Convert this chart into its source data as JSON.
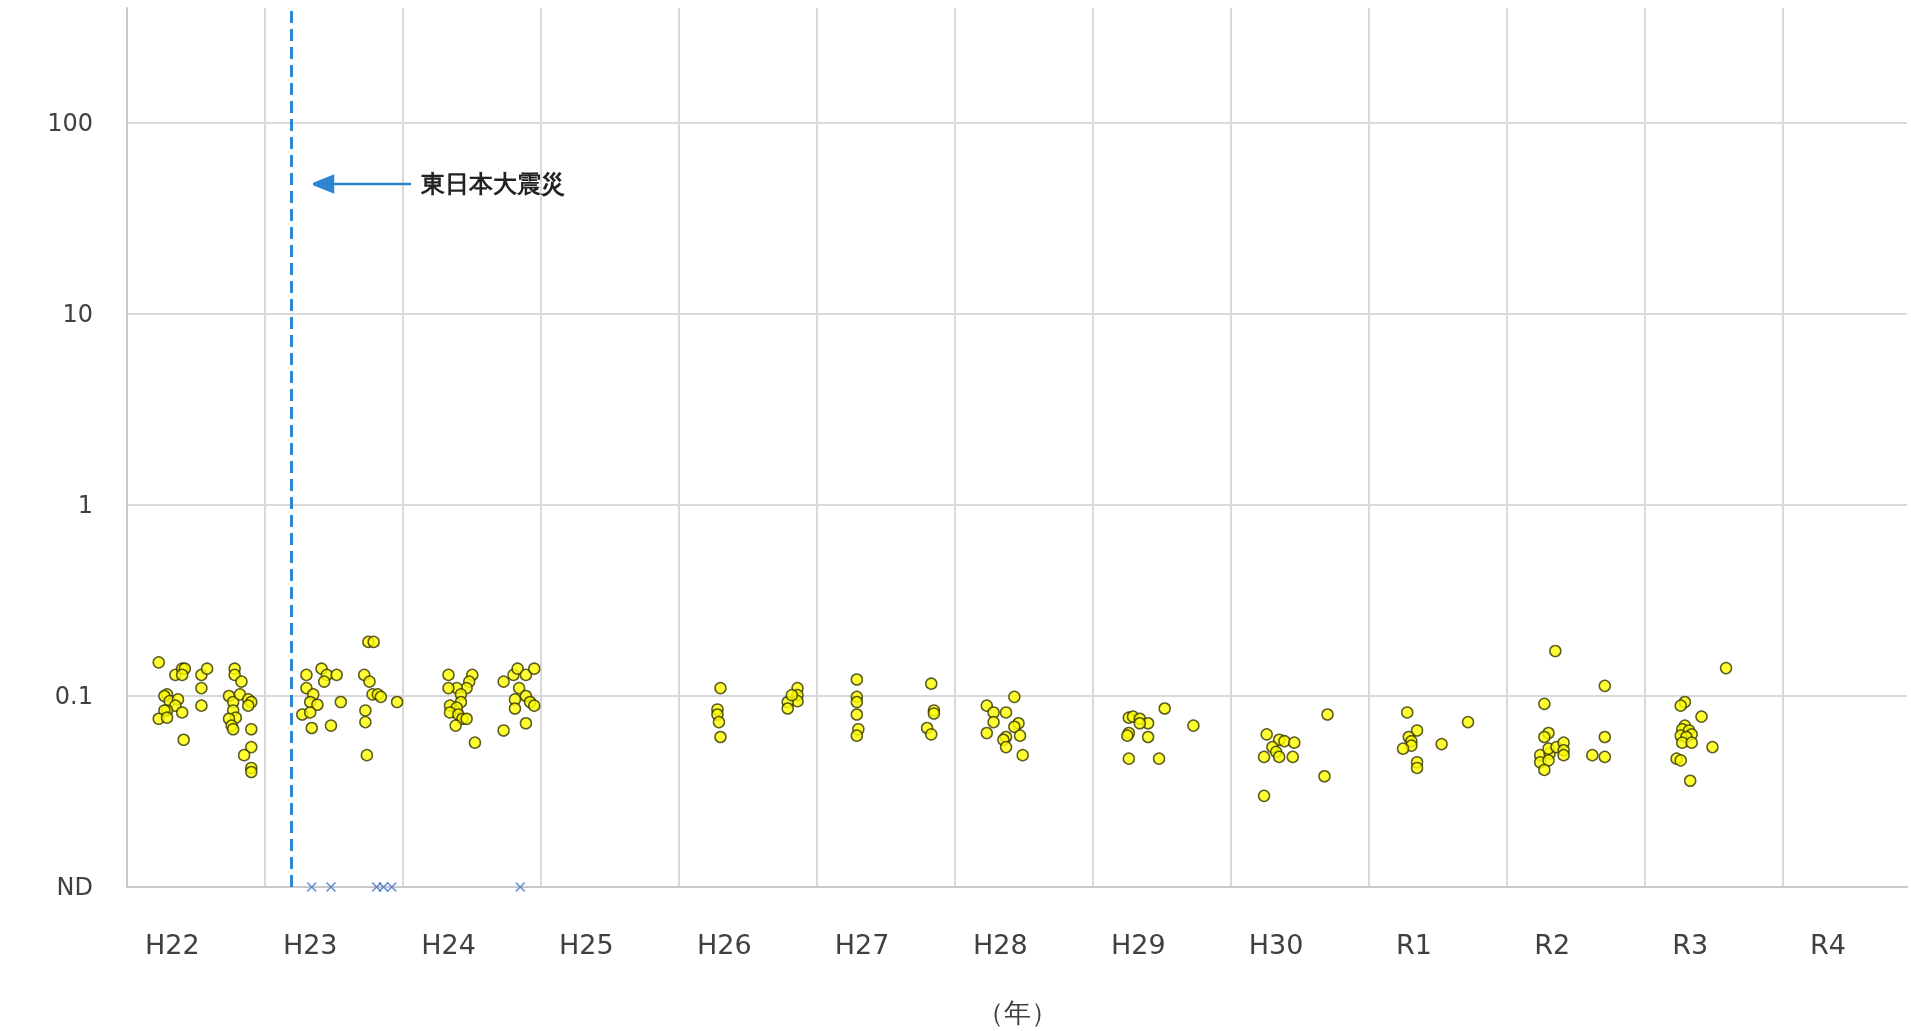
{
  "chart_data": {
    "type": "scatter",
    "xlabel": "（年）",
    "log": "y",
    "grid": true,
    "xlim": [
      "2010-01-01",
      "2022-11-26"
    ],
    "ylim": [
      0.01,
      400
    ],
    "xticks": [
      {
        "value": "2010-01-01",
        "label": null
      },
      {
        "value": "2011-01-01",
        "label": null
      },
      {
        "value": "2012-01-01",
        "label": null
      },
      {
        "value": "2013-01-01",
        "label": null
      },
      {
        "value": "2014-01-01",
        "label": null
      },
      {
        "value": "2015-01-01",
        "label": null
      },
      {
        "value": "2016-01-01",
        "label": null
      },
      {
        "value": "2017-01-01",
        "label": null
      },
      {
        "value": "2018-01-01",
        "label": null
      },
      {
        "value": "2019-01-01",
        "label": null
      },
      {
        "value": "2020-01-01",
        "label": null
      },
      {
        "value": "2021-01-01",
        "label": null
      },
      {
        "value": "2022-01-01",
        "label": null
      },
      {
        "value": "2010-05-01",
        "label": "H22"
      },
      {
        "value": "2011-05-01",
        "label": "H23"
      },
      {
        "value": "2012-05-01",
        "label": "H24"
      },
      {
        "value": "2013-05-01",
        "label": "H25"
      },
      {
        "value": "2014-05-01",
        "label": "H26"
      },
      {
        "value": "2015-05-01",
        "label": "H27"
      },
      {
        "value": "2016-05-01",
        "label": "H28"
      },
      {
        "value": "2017-05-01",
        "label": "H29"
      },
      {
        "value": "2018-05-01",
        "label": "H30"
      },
      {
        "value": "2019-05-01",
        "label": "R1"
      },
      {
        "value": "2020-05-01",
        "label": "R2"
      },
      {
        "value": "2021-05-01",
        "label": "R3"
      },
      {
        "value": "2022-05-01",
        "label": "R4"
      }
    ],
    "yticks": [
      {
        "value": 0.01,
        "label": "ND"
      },
      0.1,
      1,
      10,
      100
    ],
    "ref_lines": [
      {
        "axis": "x",
        "value": "2011-03-11",
        "color": "#2e86d0",
        "line_style": "dashed"
      }
    ],
    "annotations": [
      "東日本大震災"
    ],
    "series": [
      {
        "marker": "circle",
        "color": "#ffff00",
        "x": [
          "2010-03-26",
          "2010-05-09",
          "2010-05-27",
          "2010-06-03",
          "2010-05-27",
          "2010-07-17",
          "2010-08-01",
          "2010-07-17",
          "2010-07-17",
          "2010-04-17",
          "2010-04-10",
          "2010-04-24",
          "2010-05-16",
          "2010-05-09",
          "2010-04-17",
          "2010-04-10",
          "2010-05-27",
          "2010-03-26",
          "2010-04-17",
          "2010-05-31",
          "2010-10-13",
          "2010-10-13",
          "2010-10-31",
          "2010-09-28",
          "2010-10-09",
          "2010-10-27",
          "2010-11-18",
          "2010-11-26",
          "2010-11-18",
          "2010-10-09",
          "2010-10-16",
          "2010-09-28",
          "2010-10-05",
          "2010-10-09",
          "2010-11-26",
          "2010-11-26",
          "2010-11-07",
          "2010-11-26",
          "2010-11-26",
          "2011-04-21",
          "2011-05-31",
          "2011-06-14",
          "2011-07-10",
          "2011-06-07",
          "2011-04-21",
          "2011-05-09",
          "2011-05-01",
          "2011-05-20",
          "2011-04-10",
          "2011-05-01",
          "2011-05-05",
          "2011-06-25",
          "2011-07-21",
          "2011-09-21",
          "2011-10-05",
          "2011-10-13",
          "2011-10-27",
          "2011-11-04",
          "2011-09-24",
          "2011-09-24",
          "2011-09-28",
          "2011-10-02",
          "2011-10-16",
          "2011-12-17",
          "2012-05-01",
          "2012-07-03",
          "2012-06-25",
          "2012-06-18",
          "2012-05-23",
          "2012-05-01",
          "2012-06-03",
          "2012-06-03",
          "2012-05-05",
          "2012-05-23",
          "2012-05-05",
          "2012-05-27",
          "2012-06-07",
          "2012-06-18",
          "2012-05-20",
          "2012-07-10",
          "2012-09-24",
          "2012-10-20",
          "2012-10-31",
          "2012-11-22",
          "2012-12-14",
          "2012-11-04",
          "2012-10-24",
          "2012-11-22",
          "2012-12-03",
          "2012-12-14",
          "2012-10-24",
          "2012-11-22",
          "2012-09-24",
          "2014-04-21",
          "2014-04-13",
          "2014-04-13",
          "2014-04-17",
          "2014-04-21",
          "2014-11-11",
          "2014-11-11",
          "2014-11-11",
          "2014-10-16",
          "2014-10-16",
          "2014-10-27",
          "2015-04-17",
          "2015-04-17",
          "2015-04-17",
          "2015-04-17",
          "2015-04-21",
          "2015-04-17",
          "2015-10-31",
          "2015-11-07",
          "2015-11-07",
          "2015-10-20",
          "2015-10-31",
          "2016-06-07",
          "2016-03-26",
          "2016-04-13",
          "2016-05-16",
          "2016-04-13",
          "2016-06-18",
          "2016-06-07",
          "2016-03-26",
          "2016-06-22",
          "2016-05-16",
          "2016-05-09",
          "2016-05-16",
          "2016-06-29",
          "2017-07-10",
          "2017-04-06",
          "2017-04-17",
          "2017-05-05",
          "2017-05-27",
          "2017-05-05",
          "2017-04-06",
          "2017-04-02",
          "2017-05-27",
          "2017-09-24",
          "2017-04-06",
          "2017-06-25",
          "2018-09-14",
          "2018-04-06",
          "2018-05-09",
          "2018-05-23",
          "2018-06-18",
          "2018-04-21",
          "2018-05-01",
          "2018-03-30",
          "2018-05-09",
          "2018-06-14",
          "2018-09-06",
          "2018-03-30",
          "2019-04-13",
          "2019-09-21",
          "2019-05-09",
          "2019-04-17",
          "2019-04-24",
          "2019-04-24",
          "2019-04-02",
          "2019-07-13",
          "2019-05-09",
          "2019-05-09",
          "2020-05-09",
          "2020-04-10",
          "2020-04-21",
          "2020-04-10",
          "2020-03-30",
          "2020-04-24",
          "2020-04-21",
          "2020-05-12",
          "2020-03-30",
          "2020-04-21",
          "2020-04-10",
          "2020-05-31",
          "2020-05-31",
          "2020-05-31",
          "2020-09-17",
          "2020-09-17",
          "2020-08-15",
          "2020-09-17",
          "2021-08-04",
          "2021-04-17",
          "2021-04-06",
          "2021-05-31",
          "2021-04-17",
          "2021-04-10",
          "2021-04-28",
          "2021-05-05",
          "2021-04-06",
          "2021-04-21",
          "2021-04-10",
          "2021-05-05",
          "2021-06-29",
          "2021-03-26",
          "2021-04-06",
          "2021-05-01"
        ],
        "values": [
          0.15,
          0.129,
          0.139,
          0.139,
          0.129,
          0.129,
          0.139,
          0.11,
          0.089,
          0.102,
          0.1,
          0.094,
          0.096,
          0.089,
          0.084,
          0.084,
          0.082,
          0.076,
          0.077,
          0.059,
          0.139,
          0.129,
          0.119,
          0.1,
          0.093,
          0.102,
          0.096,
          0.093,
          0.089,
          0.084,
          0.077,
          0.076,
          0.07,
          0.067,
          0.067,
          0.054,
          0.049,
          0.042,
          0.04,
          0.129,
          0.139,
          0.129,
          0.129,
          0.119,
          0.11,
          0.102,
          0.093,
          0.09,
          0.08,
          0.082,
          0.068,
          0.07,
          0.093,
          0.129,
          0.119,
          0.102,
          0.102,
          0.099,
          0.084,
          0.073,
          0.049,
          0.192,
          0.192,
          0.093,
          0.129,
          0.129,
          0.119,
          0.11,
          0.11,
          0.11,
          0.102,
          0.093,
          0.089,
          0.087,
          0.082,
          0.08,
          0.076,
          0.076,
          0.07,
          0.057,
          0.119,
          0.129,
          0.139,
          0.129,
          0.139,
          0.11,
          0.096,
          0.1,
          0.093,
          0.089,
          0.086,
          0.072,
          0.066,
          0.11,
          0.085,
          0.08,
          0.073,
          0.061,
          0.11,
          0.101,
          0.094,
          0.093,
          0.086,
          0.101,
          0.122,
          0.099,
          0.093,
          0.08,
          0.067,
          0.062,
          0.116,
          0.084,
          0.081,
          0.068,
          0.063,
          0.099,
          0.089,
          0.082,
          0.082,
          0.073,
          0.072,
          0.069,
          0.064,
          0.062,
          0.061,
          0.059,
          0.054,
          0.049,
          0.086,
          0.077,
          0.078,
          0.076,
          0.072,
          0.072,
          0.064,
          0.062,
          0.061,
          0.07,
          0.047,
          0.047,
          0.08,
          0.063,
          0.059,
          0.058,
          0.057,
          0.054,
          0.051,
          0.048,
          0.048,
          0.048,
          0.038,
          0.03,
          0.082,
          0.073,
          0.066,
          0.061,
          0.058,
          0.055,
          0.053,
          0.056,
          0.045,
          0.042,
          0.172,
          0.091,
          0.064,
          0.061,
          0.049,
          0.05,
          0.053,
          0.054,
          0.045,
          0.046,
          0.041,
          0.057,
          0.052,
          0.049,
          0.113,
          0.061,
          0.049,
          0.048,
          0.14,
          0.093,
          0.089,
          0.078,
          0.07,
          0.067,
          0.066,
          0.063,
          0.062,
          0.061,
          0.057,
          0.057,
          0.054,
          0.047,
          0.046,
          0.036
        ]
      },
      {
        "marker": "cross",
        "color": "#4472c4",
        "x": [
          "2011-05-05",
          "2011-06-25",
          "2011-10-24",
          "2011-11-11",
          "2011-12-03",
          "2012-11-07"
        ],
        "values": [
          0.01,
          0.01,
          0.01,
          0.01,
          0.01,
          0.01
        ]
      }
    ]
  }
}
